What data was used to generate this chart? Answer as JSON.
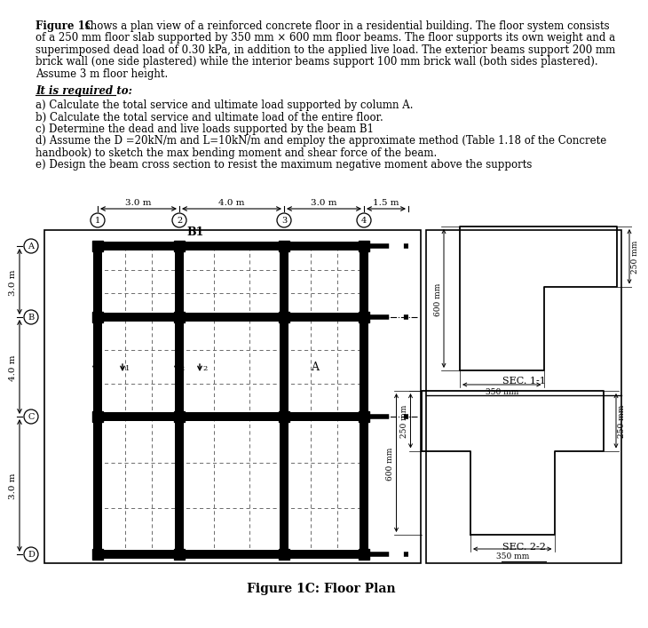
{
  "title_text": "Figure 1C: Floor Plan",
  "paragraph_bold": "Figure 1C",
  "paragraph_rest": " shows a plan view of a reinforced concrete floor in a residential building. The floor system consists",
  "paragraph_lines": [
    "of a 250 mm floor slab supported by 350 mm × 600 mm floor beams. The floor supports its own weight and a",
    "superimposed dead load of 0.30 kPa, in addition to the applied live load. The exterior beams support 200 mm",
    "brick wall (one side plastered) while the interior beams support 100 mm brick wall (both sides plastered).",
    "Assume 3 m floor height."
  ],
  "required_heading": "It is required to:",
  "required_items": [
    "a) Calculate the total service and ultimate load supported by column A.",
    "b) Calculate the total service and ultimate load of the entire floor.",
    "c) Determine the dead and live loads supported by the beam B1",
    "d) Assume the D =20kN/m and L=10kN/m and employ the approximate method (Table 1.18 of the Concrete",
    "handbook) to sketch the max bending moment and shear force of the beam.",
    "e) Design the beam cross section to resist the maximum negative moment above the supports"
  ],
  "col_labels": [
    "1",
    "2",
    "3",
    "4"
  ],
  "row_labels": [
    "A",
    "B",
    "C",
    "D"
  ],
  "beam_label": "B1",
  "col_A_label": "A",
  "background_color": "#ffffff",
  "sec11_label": "SEC. 1-1",
  "sec22_label": "SEC. 2-2",
  "dim_600": "600 mm",
  "dim_350_1": "350 mm",
  "dim_250_1": "250 mm",
  "dim_600_2": "600 mm",
  "dim_250_2": "250 mm",
  "dim_350_2": "350 mm",
  "dim_250_3": "250 mm"
}
